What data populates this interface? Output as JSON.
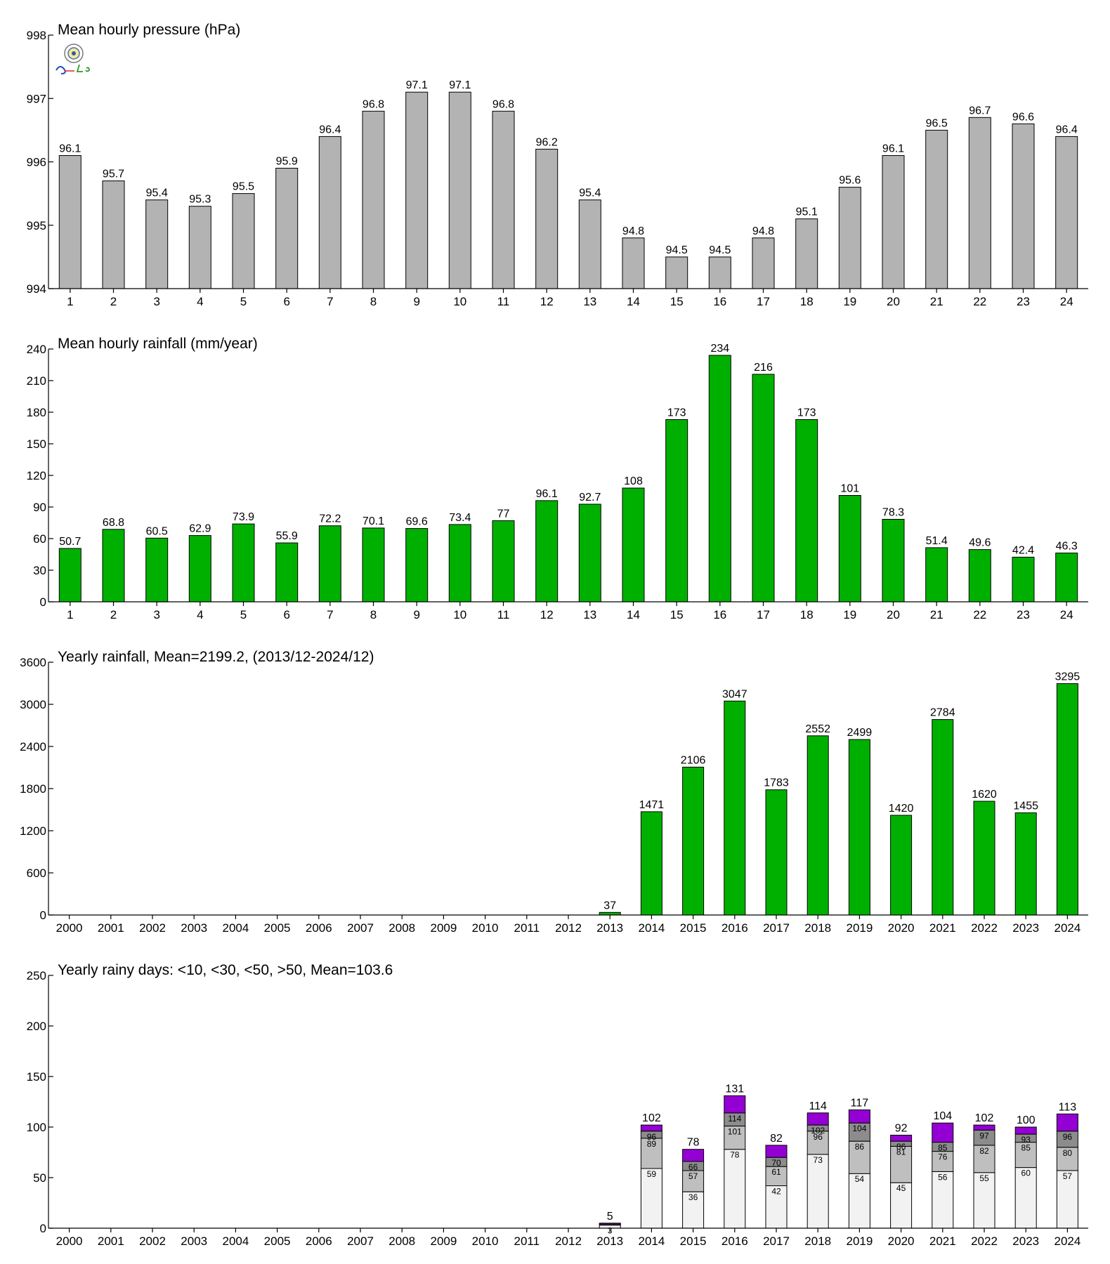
{
  "chart_data": [
    {
      "type": "bar",
      "title": "Mean hourly pressure (hPa)",
      "categories": [
        "1",
        "2",
        "3",
        "4",
        "5",
        "6",
        "7",
        "8",
        "9",
        "10",
        "11",
        "12",
        "13",
        "14",
        "15",
        "16",
        "17",
        "18",
        "19",
        "20",
        "21",
        "22",
        "23",
        "24"
      ],
      "values": [
        996.1,
        995.7,
        995.4,
        995.3,
        995.5,
        995.9,
        996.4,
        996.8,
        997.1,
        997.1,
        996.8,
        996.2,
        995.4,
        994.8,
        994.5,
        994.5,
        994.8,
        995.1,
        995.6,
        996.1,
        996.5,
        996.7,
        996.6,
        996.4
      ],
      "value_labels": [
        "96.1",
        "95.7",
        "95.4",
        "95.3",
        "95.5",
        "95.9",
        "96.4",
        "96.8",
        "97.1",
        "97.1",
        "96.8",
        "96.2",
        "95.4",
        "94.8",
        "94.5",
        "94.5",
        "94.8",
        "95.1",
        "95.6",
        "96.1",
        "96.5",
        "96.7",
        "96.6",
        "96.4"
      ],
      "ylim": [
        994,
        998
      ],
      "yticks": [
        994,
        995,
        996,
        997,
        998
      ],
      "color": "#b3b3b3",
      "logo": "weather-lab-logo"
    },
    {
      "type": "bar",
      "title": "Mean hourly rainfall (mm/year)",
      "categories": [
        "1",
        "2",
        "3",
        "4",
        "5",
        "6",
        "7",
        "8",
        "9",
        "10",
        "11",
        "12",
        "13",
        "14",
        "15",
        "16",
        "17",
        "18",
        "19",
        "20",
        "21",
        "22",
        "23",
        "24"
      ],
      "values": [
        50.7,
        68.8,
        60.5,
        62.9,
        73.9,
        55.9,
        72.2,
        70.1,
        69.6,
        73.4,
        77,
        96.1,
        92.7,
        108,
        173,
        234,
        216,
        173,
        101,
        78.3,
        51.4,
        49.6,
        42.4,
        46.3
      ],
      "value_labels": [
        "50.7",
        "68.8",
        "60.5",
        "62.9",
        "73.9",
        "55.9",
        "72.2",
        "70.1",
        "69.6",
        "73.4",
        "77",
        "96.1",
        "92.7",
        "108",
        "173",
        "234",
        "216",
        "173",
        "101",
        "78.3",
        "51.4",
        "49.6",
        "42.4",
        "46.3"
      ],
      "ylim": [
        0,
        240
      ],
      "yticks": [
        0,
        30,
        60,
        90,
        120,
        150,
        180,
        210,
        240
      ],
      "color": "#00b000"
    },
    {
      "type": "bar",
      "title": "Yearly rainfall, Mean=2199.2, (2013/12-2024/12)",
      "categories": [
        "2000",
        "2001",
        "2002",
        "2003",
        "2004",
        "2005",
        "2006",
        "2007",
        "2008",
        "2009",
        "2010",
        "2011",
        "2012",
        "2013",
        "2014",
        "2015",
        "2016",
        "2017",
        "2018",
        "2019",
        "2020",
        "2021",
        "2022",
        "2023",
        "2024"
      ],
      "values": [
        null,
        null,
        null,
        null,
        null,
        null,
        null,
        null,
        null,
        null,
        null,
        null,
        null,
        37,
        1471,
        2106,
        3047,
        1783,
        2552,
        2499,
        1420,
        2784,
        1620,
        1455,
        3295
      ],
      "value_labels": [
        "",
        "",
        "",
        "",
        "",
        "",
        "",
        "",
        "",
        "",
        "",
        "",
        "",
        "37",
        "1471",
        "2106",
        "3047",
        "1783",
        "2552",
        "2499",
        "1420",
        "2784",
        "1620",
        "1455",
        "3295"
      ],
      "ylim": [
        0,
        3600
      ],
      "yticks": [
        0,
        600,
        1200,
        1800,
        2400,
        3000,
        3600
      ],
      "color": "#00b000"
    },
    {
      "type": "bar",
      "stacked": true,
      "title": "Yearly rainy days: <10, <30, <50, >50, Mean=103.6",
      "categories": [
        "2000",
        "2001",
        "2002",
        "2003",
        "2004",
        "2005",
        "2006",
        "2007",
        "2008",
        "2009",
        "2010",
        "2011",
        "2012",
        "2013",
        "2014",
        "2015",
        "2016",
        "2017",
        "2018",
        "2019",
        "2020",
        "2021",
        "2022",
        "2023",
        "2024"
      ],
      "cumulative": [
        null,
        null,
        null,
        null,
        null,
        null,
        null,
        null,
        null,
        null,
        null,
        null,
        null,
        [
          3,
          4,
          4,
          5
        ],
        [
          59,
          89,
          96,
          102
        ],
        [
          36,
          57,
          66,
          78
        ],
        [
          78,
          101,
          114,
          131
        ],
        [
          42,
          61,
          70,
          82
        ],
        [
          73,
          96,
          102,
          114
        ],
        [
          54,
          86,
          104,
          117
        ],
        [
          45,
          81,
          86,
          92
        ],
        [
          56,
          76,
          85,
          104
        ],
        [
          55,
          82,
          97,
          102
        ],
        [
          60,
          85,
          93,
          100
        ],
        [
          57,
          80,
          96,
          113
        ]
      ],
      "segment_labels": [
        null,
        null,
        null,
        null,
        null,
        null,
        null,
        null,
        null,
        null,
        null,
        null,
        null,
        [
          "3",
          "",
          "",
          ""
        ],
        [
          "59",
          "89",
          "96",
          ""
        ],
        [
          "36",
          "57",
          "66",
          ""
        ],
        [
          "78",
          "101",
          "114",
          ""
        ],
        [
          "42",
          "61",
          "70",
          ""
        ],
        [
          "73",
          "96",
          "102",
          ""
        ],
        [
          "54",
          "86",
          "104",
          ""
        ],
        [
          "45",
          "81",
          "86",
          ""
        ],
        [
          "56",
          "76",
          "85",
          ""
        ],
        [
          "55",
          "82",
          "97",
          ""
        ],
        [
          "60",
          "85",
          "93",
          ""
        ],
        [
          "57",
          "80",
          "96",
          ""
        ]
      ],
      "total_labels": [
        "",
        "",
        "",
        "",
        "",
        "",
        "",
        "",
        "",
        "",
        "",
        "",
        "",
        "5",
        "102",
        "78",
        "131",
        "82",
        "114",
        "117",
        "92",
        "104",
        "102",
        "100",
        "113"
      ],
      "colors": [
        "#f2f2f2",
        "#bfbfbf",
        "#8c8c8c",
        "#9400d3"
      ],
      "ylim": [
        0,
        250
      ],
      "yticks": [
        0,
        50,
        100,
        150,
        200,
        250
      ]
    }
  ]
}
